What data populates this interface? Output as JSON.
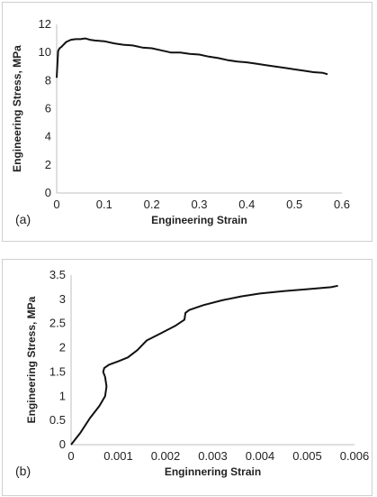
{
  "chart_data": [
    {
      "type": "line",
      "panel_label": "(a)",
      "xlabel": "Engineering Strain",
      "ylabel": "Engineering Stress, MPa",
      "xlim": [
        0,
        0.6
      ],
      "ylim": [
        0,
        12
      ],
      "xticks": [
        "0",
        "0.1",
        "0.2",
        "0.3",
        "0.4",
        "0.5",
        "0.6"
      ],
      "yticks": [
        "0",
        "2",
        "4",
        "6",
        "8",
        "10",
        "12"
      ],
      "grid": false,
      "series": [
        {
          "color": "#111111",
          "x": [
            0,
            0.003,
            0.006,
            0.01,
            0.02,
            0.03,
            0.04,
            0.05,
            0.06,
            0.07,
            0.08,
            0.1,
            0.12,
            0.14,
            0.16,
            0.18,
            0.2,
            0.22,
            0.24,
            0.26,
            0.28,
            0.3,
            0.32,
            0.34,
            0.36,
            0.38,
            0.4,
            0.42,
            0.44,
            0.46,
            0.48,
            0.5,
            0.52,
            0.54,
            0.56,
            0.57
          ],
          "y": [
            8.2,
            10.1,
            10.3,
            10.4,
            10.75,
            10.9,
            10.95,
            10.95,
            11.0,
            10.9,
            10.85,
            10.8,
            10.65,
            10.55,
            10.5,
            10.35,
            10.3,
            10.15,
            10.0,
            10.0,
            9.9,
            9.85,
            9.7,
            9.6,
            9.45,
            9.35,
            9.3,
            9.2,
            9.1,
            9.0,
            8.9,
            8.8,
            8.7,
            8.6,
            8.55,
            8.45
          ]
        }
      ]
    },
    {
      "type": "line",
      "panel_label": "(b)",
      "xlabel": "Enginnering Strain",
      "ylabel": "Engineering Stress, MPa",
      "xlim": [
        0,
        0.006
      ],
      "ylim": [
        0,
        3.5
      ],
      "xticks": [
        "0",
        "0.001",
        "0.002",
        "0.003",
        "0.004",
        "0.005",
        "0.006"
      ],
      "yticks": [
        "0",
        "0.5",
        "1",
        "1.5",
        "2",
        "2.5",
        "3",
        "3.5"
      ],
      "grid": false,
      "series": [
        {
          "color": "#111111",
          "x": [
            0,
            0.0002,
            0.0004,
            0.0006,
            0.00072,
            0.00075,
            0.00072,
            0.00068,
            0.0007,
            0.0008,
            0.001,
            0.0012,
            0.0014,
            0.0016,
            0.0019,
            0.0022,
            0.0024,
            0.00242,
            0.0025,
            0.0028,
            0.0032,
            0.0036,
            0.004,
            0.0045,
            0.005,
            0.0055,
            0.00565
          ],
          "y": [
            0,
            0.25,
            0.55,
            0.8,
            1.0,
            1.2,
            1.4,
            1.5,
            1.58,
            1.65,
            1.72,
            1.8,
            1.95,
            2.15,
            2.3,
            2.45,
            2.58,
            2.72,
            2.78,
            2.88,
            2.98,
            3.06,
            3.12,
            3.17,
            3.21,
            3.25,
            3.28
          ]
        }
      ]
    }
  ]
}
